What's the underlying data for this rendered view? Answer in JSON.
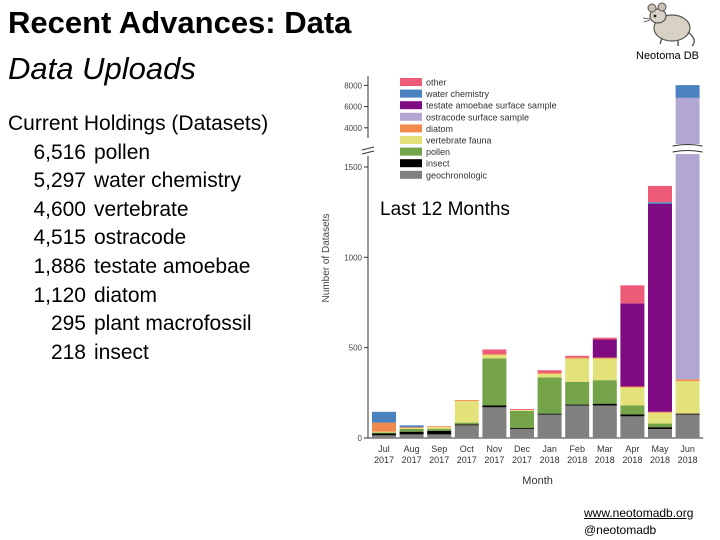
{
  "slide": {
    "title": "Recent Advances: Data",
    "subtitle": "Data Uploads",
    "logo_label": "Neotoma DB",
    "holdings_heading": "Current Holdings (Datasets)",
    "holdings": [
      {
        "count": "6,516",
        "label": "pollen"
      },
      {
        "count": "5,297",
        "label": "water chemistry"
      },
      {
        "count": "4,600",
        "label": "vertebrate"
      },
      {
        "count": "4,515",
        "label": "ostracode"
      },
      {
        "count": "1,886",
        "label": "testate amoebae"
      },
      {
        "count": "1,120",
        "label": "diatom"
      },
      {
        "count": "295",
        "label": "plant macrofossil"
      },
      {
        "count": "218",
        "label": "insect"
      }
    ],
    "chart_annotation": "Last 12 Months",
    "footer_link": "www.neotomadb.org",
    "footer_handle": "@neotomadb"
  },
  "chart_data": {
    "type": "bar",
    "stacked": true,
    "xlabel": "Month",
    "ylabel": "Number of Datasets",
    "y_ticks_lower": [
      "0",
      "500",
      "1000",
      "1500"
    ],
    "y_ticks_upper": [
      "4000",
      "6000",
      "8000"
    ],
    "axis_break": true,
    "ylim": [
      0,
      8000
    ],
    "categories": [
      [
        "Jul",
        "2017"
      ],
      [
        "Aug",
        "2017"
      ],
      [
        "Sep",
        "2017"
      ],
      [
        "Oct",
        "2017"
      ],
      [
        "Nov",
        "2017"
      ],
      [
        "Dec",
        "2017"
      ],
      [
        "Jan",
        "2018"
      ],
      [
        "Feb",
        "2018"
      ],
      [
        "Mar",
        "2018"
      ],
      [
        "Apr",
        "2018"
      ],
      [
        "May",
        "2018"
      ],
      [
        "Jun",
        "2018"
      ]
    ],
    "legend_position": "top-left",
    "series": [
      {
        "name": "geochronologic",
        "color": "#808080",
        "values": [
          15,
          20,
          20,
          70,
          170,
          50,
          130,
          180,
          180,
          120,
          50,
          130
        ]
      },
      {
        "name": "insect",
        "color": "#000000",
        "values": [
          10,
          15,
          20,
          5,
          10,
          5,
          5,
          5,
          10,
          10,
          10,
          5
        ]
      },
      {
        "name": "pollen",
        "color": "#74a34a",
        "values": [
          5,
          15,
          10,
          10,
          260,
          95,
          200,
          125,
          130,
          50,
          20,
          0
        ]
      },
      {
        "name": "vertebrate fauna",
        "color": "#e3e27a",
        "values": [
          5,
          5,
          10,
          120,
          20,
          5,
          20,
          130,
          120,
          100,
          60,
          180
        ]
      },
      {
        "name": "diatom",
        "color": "#f28a4e",
        "values": [
          50,
          5,
          5,
          5,
          5,
          0,
          5,
          5,
          5,
          5,
          5,
          10
        ]
      },
      {
        "name": "ostracode surface sample",
        "color": "#b2a7d3",
        "values": [
          0,
          0,
          0,
          0,
          0,
          0,
          0,
          0,
          0,
          0,
          0,
          6500
        ]
      },
      {
        "name": "testate amoebae surface sample",
        "color": "#7f0b82",
        "values": [
          0,
          0,
          0,
          0,
          0,
          0,
          0,
          0,
          100,
          460,
          1150,
          0
        ]
      },
      {
        "name": "water chemistry",
        "color": "#4a82c0",
        "values": [
          60,
          10,
          0,
          0,
          0,
          0,
          0,
          0,
          0,
          0,
          10,
          1200
        ]
      },
      {
        "name": "other",
        "color": "#ee5b78",
        "values": [
          0,
          0,
          0,
          0,
          25,
          5,
          15,
          10,
          10,
          100,
          90,
          0
        ]
      }
    ]
  }
}
